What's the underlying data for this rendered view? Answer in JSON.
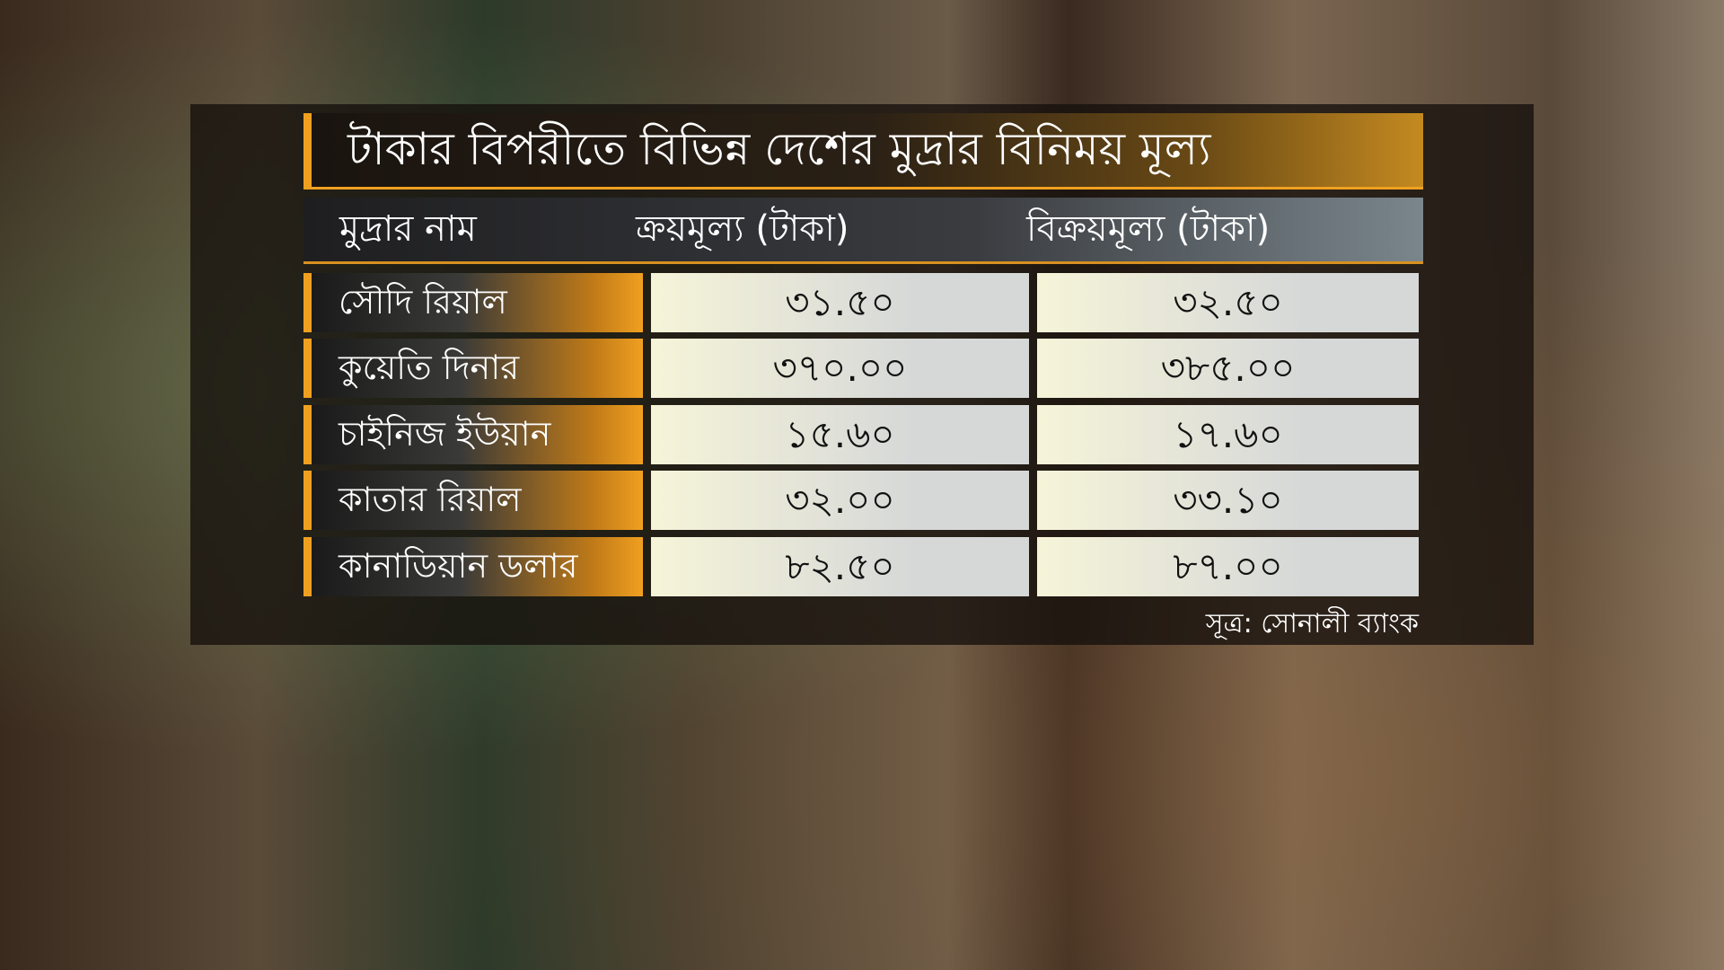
{
  "title": "টাকার বিপরীতে বিভিন্ন দেশের মুদ্রার বিনিময় মূল্য",
  "headers": [
    "মুদ্রার নাম",
    "ক্রয়মূল্য (টাকা)",
    "বিক্রয়মূল্য (টাকা)"
  ],
  "rows": [
    {
      "name": "সৌদি রিয়াল",
      "buy": "৩১.৫০",
      "sell": "৩২.৫০"
    },
    {
      "name": "কুয়েতি দিনার",
      "buy": "৩৭০.০০",
      "sell": "৩৮৫.০০"
    },
    {
      "name": "চাইনিজ ইউয়ান",
      "buy": "১৫.৬০",
      "sell": "১৭.৬০"
    },
    {
      "name": "কাতার রিয়াল",
      "buy": "৩২.০০",
      "sell": "৩৩.১০"
    },
    {
      "name": "কানাডিয়ান ডলার",
      "buy": "৮২.৫০",
      "sell": "৮৭.০০"
    }
  ],
  "source": "সূত্র: সোনালী ব্যাংক",
  "colors": {
    "accent": "#f0a020"
  }
}
